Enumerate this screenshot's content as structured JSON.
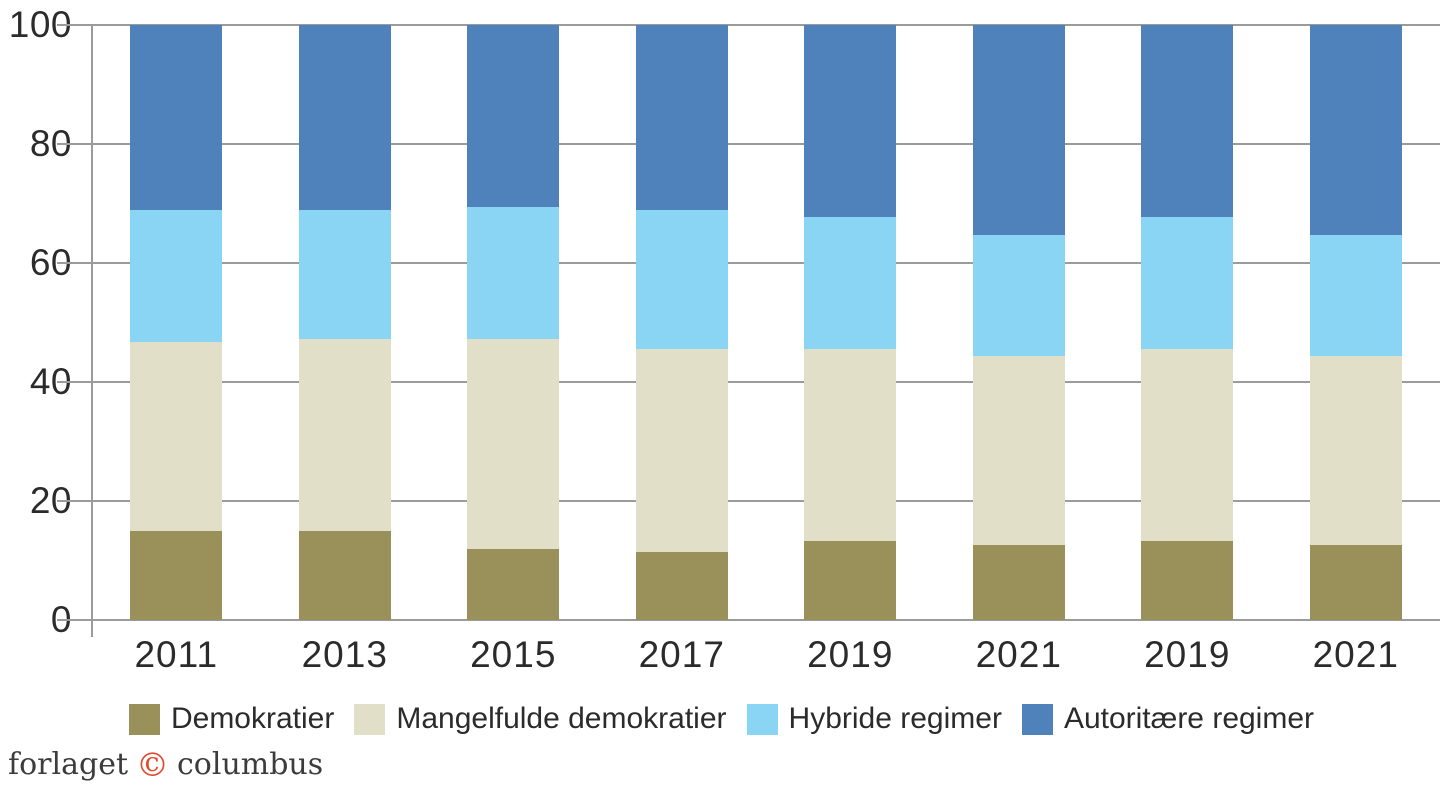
{
  "chart_data": {
    "type": "bar",
    "stacked": true,
    "title": "",
    "xlabel": "",
    "ylabel": "",
    "categories": [
      "2011",
      "2013",
      "2015",
      "2017",
      "2019",
      "2021",
      "2019",
      "2021"
    ],
    "series": [
      {
        "name": "Demokratier",
        "color": "#99905A",
        "values": [
          15.0,
          15.0,
          12.0,
          11.4,
          13.2,
          12.6,
          13.2,
          12.6
        ]
      },
      {
        "name": "Mangelfulde demokratier",
        "color": "#E2DFC9",
        "values": [
          31.7,
          32.3,
          35.3,
          34.1,
          32.3,
          31.7,
          32.3,
          31.7
        ]
      },
      {
        "name": "Hybride regimer",
        "color": "#8AD4F4",
        "values": [
          22.2,
          21.6,
          22.2,
          23.4,
          22.2,
          20.4,
          22.2,
          20.4
        ]
      },
      {
        "name": "Autoritære regimer",
        "color": "#4F81BA",
        "values": [
          31.1,
          31.1,
          30.5,
          31.1,
          32.3,
          35.3,
          32.3,
          35.3
        ]
      }
    ],
    "ylim": [
      0,
      100
    ],
    "y_ticks": [
      0,
      20,
      40,
      60,
      80,
      100
    ],
    "grid": true,
    "legend_position": "bottom"
  },
  "colors": {
    "gridline": "#9B9B9B",
    "axis_text": "#2B2B2B",
    "copyright_red": "#E1492F"
  },
  "footer": {
    "part1": "forlaget",
    "copyright": "©",
    "part2": "columbus"
  }
}
